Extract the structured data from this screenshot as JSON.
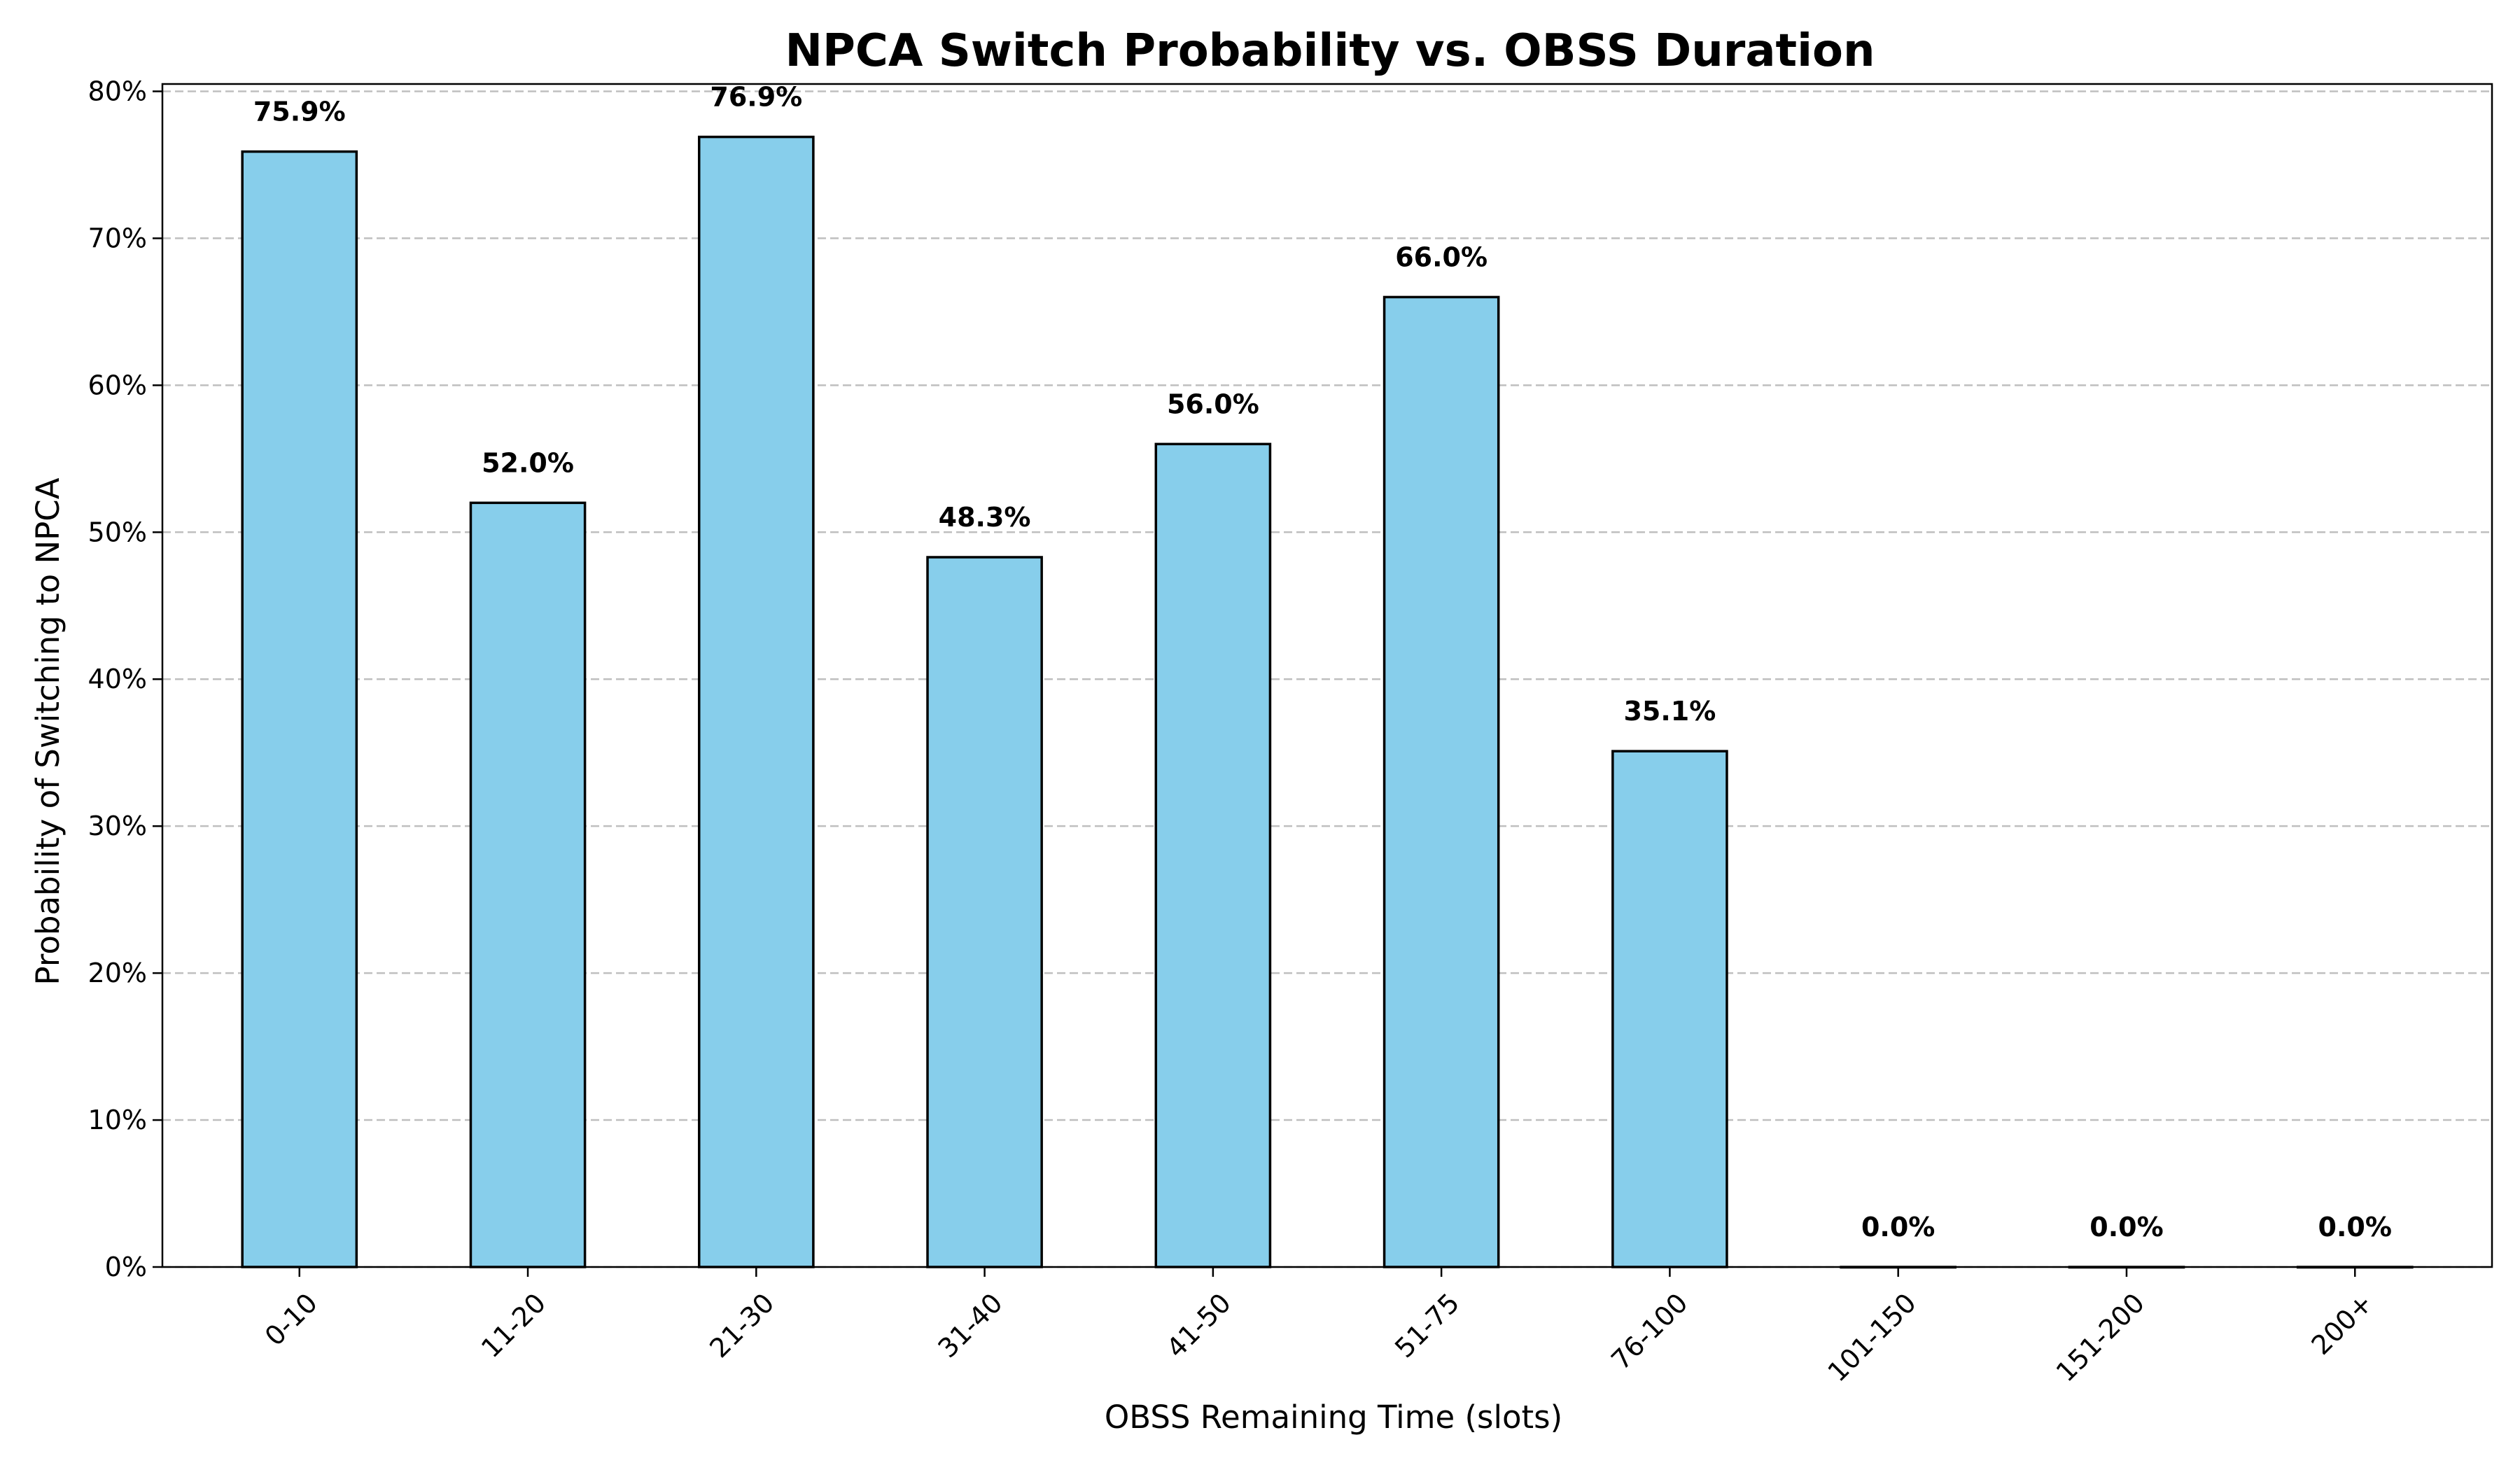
{
  "chart_data": {
    "type": "bar",
    "title": "NPCA Switch Probability vs. OBSS Duration",
    "xlabel": "OBSS Remaining Time (slots)",
    "ylabel": "Probability of Switching to NPCA",
    "categories": [
      "0-10",
      "11-20",
      "21-30",
      "31-40",
      "41-50",
      "51-75",
      "76-100",
      "101-150",
      "151-200",
      "200+"
    ],
    "values": [
      75.9,
      52.0,
      76.9,
      48.3,
      56.0,
      66.0,
      35.1,
      0.0,
      0.0,
      0.0
    ],
    "value_labels": [
      "75.9%",
      "52.0%",
      "76.9%",
      "48.3%",
      "56.0%",
      "66.0%",
      "35.1%",
      "0.0%",
      "0.0%",
      "0.0%"
    ],
    "ylim": [
      0,
      80.5
    ],
    "yticks": [
      0,
      10,
      20,
      30,
      40,
      50,
      60,
      70,
      80
    ],
    "ytick_labels": [
      "0%",
      "10%",
      "20%",
      "30%",
      "40%",
      "50%",
      "60%",
      "70%",
      "80%"
    ],
    "grid": "y-dashed",
    "bar_color": "#87CEEB",
    "edge_color": "#000000"
  }
}
